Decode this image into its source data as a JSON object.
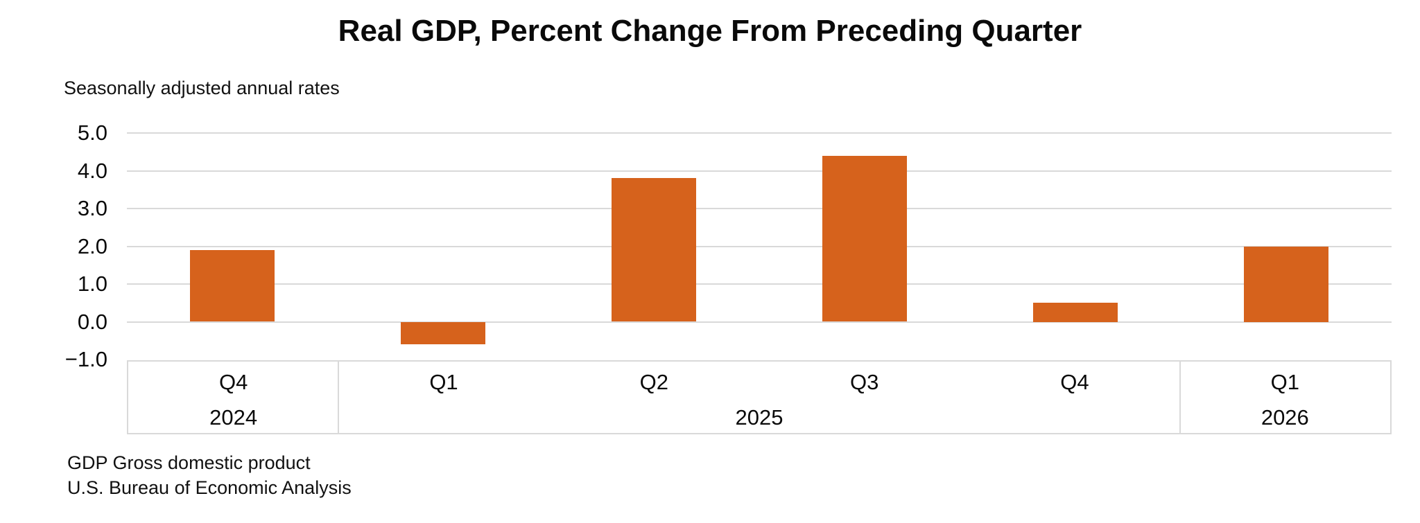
{
  "title": "Real GDP, Percent Change From Preceding Quarter",
  "subtitle": "Seasonally adjusted annual rates",
  "footer": {
    "line1": "GDP Gross domestic product",
    "line2": "U.S. Bureau of Economic Analysis"
  },
  "colors": {
    "bar": "#D6621C",
    "gridline": "#D9D9D9",
    "axis_border": "#D9D9D9",
    "text": "#0A0A0A"
  },
  "chart_data": {
    "type": "bar",
    "title": "Real GDP, Percent Change From Preceding Quarter",
    "subtitle": "Seasonally adjusted annual rates",
    "categories": [
      "Q4 2024",
      "Q1 2025",
      "Q2 2025",
      "Q3 2025",
      "Q4 2025",
      "Q1 2026"
    ],
    "quarter_labels": [
      "Q4",
      "Q1",
      "Q2",
      "Q3",
      "Q4",
      "Q1"
    ],
    "year_groups": [
      {
        "label": "2024",
        "span": 1
      },
      {
        "label": "2025",
        "span": 4
      },
      {
        "label": "2026",
        "span": 1
      }
    ],
    "values": [
      1.9,
      -0.6,
      3.8,
      4.4,
      0.5,
      2.0
    ],
    "yticks": [
      5.0,
      4.0,
      3.0,
      2.0,
      1.0,
      0.0,
      -1.0
    ],
    "ytick_labels": [
      "5.0",
      "4.0",
      "3.0",
      "2.0",
      "1.0",
      "0.0",
      "−1.0"
    ],
    "ylim": [
      -1.0,
      5.0
    ],
    "xlabel": "",
    "ylabel": "",
    "grid": "horizontal",
    "legend": "none",
    "bar_color": "#D6621C"
  }
}
